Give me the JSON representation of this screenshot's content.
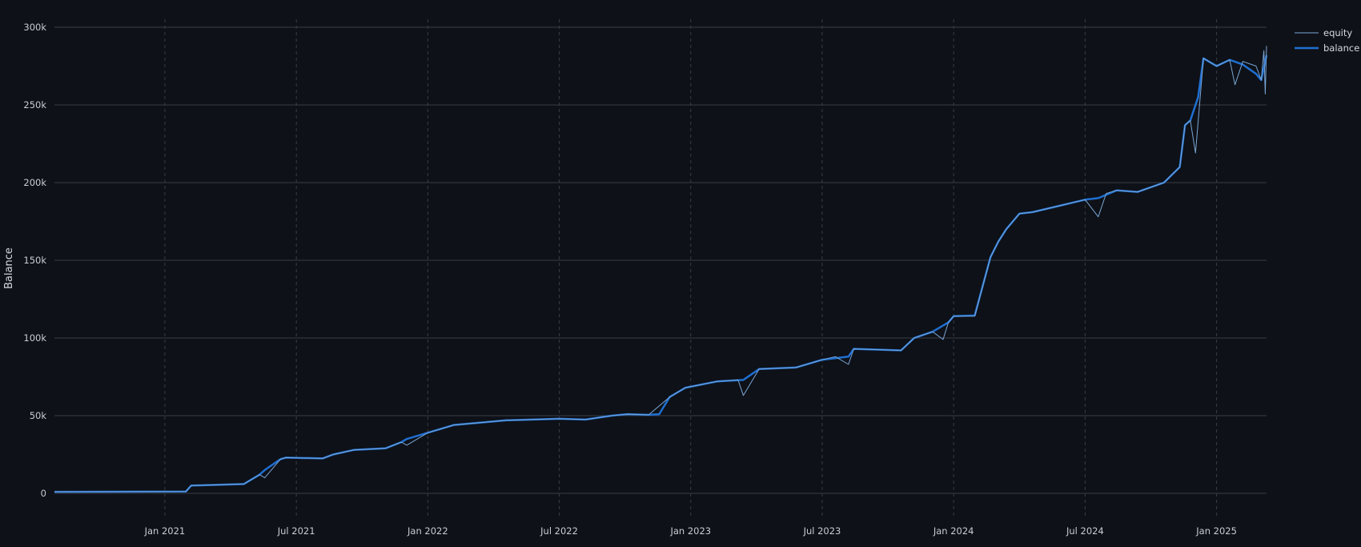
{
  "chart_data": {
    "type": "line",
    "title": "",
    "xlabel": "",
    "ylabel": "Balance",
    "ylim": [
      0,
      300000
    ],
    "grid": {
      "y": true,
      "x": true,
      "x_style": "dashed"
    },
    "legend_position": "top-right-outside",
    "y_ticks": [
      {
        "value": 0,
        "label": "0"
      },
      {
        "value": 50000,
        "label": "50k"
      },
      {
        "value": 100000,
        "label": "100k"
      },
      {
        "value": 150000,
        "label": "150k"
      },
      {
        "value": 200000,
        "label": "200k"
      },
      {
        "value": 250000,
        "label": "250k"
      },
      {
        "value": 300000,
        "label": "300k"
      }
    ],
    "x_ticks": [
      {
        "label": "Jan 2021",
        "t": 2021.0
      },
      {
        "label": "Jul 2021",
        "t": 2021.5
      },
      {
        "label": "Jan 2022",
        "t": 2022.0
      },
      {
        "label": "Jul 2022",
        "t": 2022.5
      },
      {
        "label": "Jan 2023",
        "t": 2023.0
      },
      {
        "label": "Jul 2023",
        "t": 2023.5
      },
      {
        "label": "Jan 2024",
        "t": 2024.0
      },
      {
        "label": "Jul 2024",
        "t": 2024.5
      },
      {
        "label": "Jan 2025",
        "t": 2025.0
      }
    ],
    "x_range": [
      2020.58,
      2025.19
    ],
    "series": [
      {
        "name": "equity",
        "color": "#7aa6d6",
        "width": 1,
        "x": [
          2020.58,
          2021.08,
          2021.1,
          2021.3,
          2021.36,
          2021.38,
          2021.44,
          2021.46,
          2021.6,
          2021.64,
          2021.72,
          2021.84,
          2021.9,
          2021.92,
          2022.0,
          2022.1,
          2022.3,
          2022.5,
          2022.6,
          2022.7,
          2022.76,
          2022.84,
          2022.92,
          2022.98,
          2023.1,
          2023.18,
          2023.2,
          2023.26,
          2023.4,
          2023.5,
          2023.55,
          2023.6,
          2023.62,
          2023.8,
          2023.85,
          2023.92,
          2023.96,
          2023.98,
          2024.0,
          2024.08,
          2024.14,
          2024.17,
          2024.2,
          2024.25,
          2024.3,
          2024.4,
          2024.5,
          2024.55,
          2024.58,
          2024.62,
          2024.7,
          2024.8,
          2024.86,
          2024.88,
          2024.9,
          2024.92,
          2024.95,
          2025.0,
          2025.05,
          2025.07,
          2025.1,
          2025.15,
          2025.17,
          2025.18,
          2025.185,
          2025.19
        ],
        "values": [
          1000,
          1200,
          5000,
          6000,
          12000,
          10000,
          22000,
          23000,
          22500,
          25000,
          28000,
          29000,
          33000,
          31000,
          39000,
          44000,
          47000,
          48000,
          47500,
          50000,
          51000,
          50500,
          62000,
          68000,
          72000,
          73000,
          63000,
          80000,
          81000,
          86000,
          88000,
          83000,
          93000,
          92000,
          100000,
          104000,
          99000,
          110000,
          114000,
          114000,
          152000,
          162000,
          170000,
          180000,
          181000,
          185000,
          189000,
          178000,
          193000,
          195000,
          194000,
          200000,
          210000,
          237000,
          240000,
          219000,
          280000,
          275000,
          279000,
          263000,
          278000,
          275000,
          266000,
          285000,
          257000,
          288000
        ]
      },
      {
        "name": "balance",
        "color": "#1f6fd1",
        "width": 2.5,
        "x": [
          2020.58,
          2021.08,
          2021.1,
          2021.3,
          2021.36,
          2021.38,
          2021.44,
          2021.46,
          2021.6,
          2021.64,
          2021.72,
          2021.84,
          2021.9,
          2021.92,
          2022.0,
          2022.1,
          2022.3,
          2022.5,
          2022.6,
          2022.7,
          2022.76,
          2022.84,
          2022.88,
          2022.92,
          2022.98,
          2023.1,
          2023.2,
          2023.26,
          2023.4,
          2023.5,
          2023.6,
          2023.62,
          2023.8,
          2023.85,
          2023.92,
          2023.98,
          2024.0,
          2024.08,
          2024.14,
          2024.17,
          2024.2,
          2024.25,
          2024.3,
          2024.4,
          2024.5,
          2024.55,
          2024.62,
          2024.7,
          2024.8,
          2024.86,
          2024.88,
          2024.9,
          2024.93,
          2024.95,
          2025.0,
          2025.05,
          2025.1,
          2025.15,
          2025.17,
          2025.19
        ],
        "values": [
          1000,
          1200,
          5000,
          6000,
          12000,
          15000,
          22000,
          23000,
          22500,
          25000,
          28000,
          29000,
          33000,
          35000,
          39000,
          44000,
          47000,
          48000,
          47500,
          50000,
          51000,
          50500,
          51000,
          62000,
          68000,
          72000,
          73000,
          80000,
          81000,
          86000,
          88000,
          93000,
          92000,
          100000,
          104000,
          110000,
          114000,
          114500,
          152000,
          162000,
          170000,
          180000,
          181000,
          185000,
          189000,
          190000,
          195000,
          194000,
          200000,
          210000,
          237000,
          240000,
          255000,
          280000,
          275000,
          279000,
          276000,
          270000,
          266000,
          282000
        ]
      }
    ]
  },
  "legend": {
    "items": [
      {
        "label": "equity",
        "color": "#7aa6d6"
      },
      {
        "label": "balance",
        "color": "#1f6fd1"
      }
    ]
  },
  "colors": {
    "background": "#0e1117",
    "grid": "#3a3d44",
    "text": "#c9cdd3"
  }
}
